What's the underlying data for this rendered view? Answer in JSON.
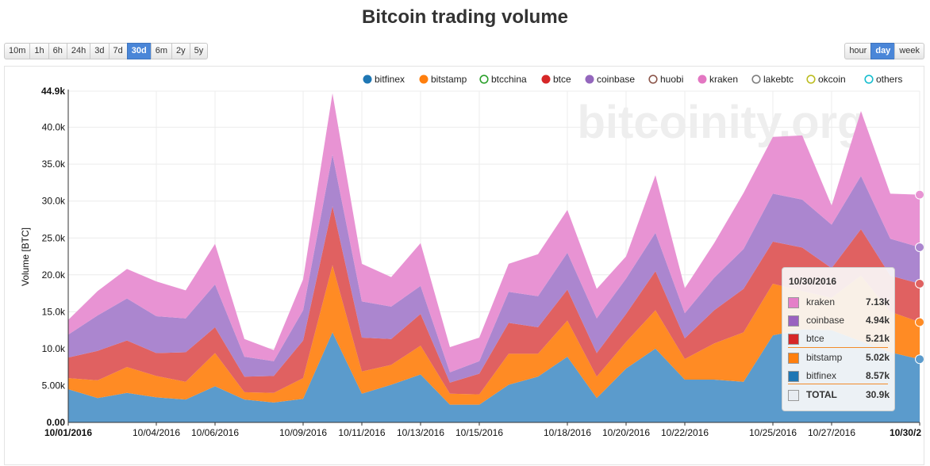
{
  "title": "Bitcoin trading volume",
  "range_buttons": [
    {
      "label": "10m",
      "active": false
    },
    {
      "label": "1h",
      "active": false
    },
    {
      "label": "6h",
      "active": false
    },
    {
      "label": "24h",
      "active": false
    },
    {
      "label": "3d",
      "active": false
    },
    {
      "label": "7d",
      "active": false
    },
    {
      "label": "30d",
      "active": true
    },
    {
      "label": "6m",
      "active": false
    },
    {
      "label": "2y",
      "active": false
    },
    {
      "label": "5y",
      "active": false
    }
  ],
  "period_buttons": [
    {
      "label": "hour",
      "active": false
    },
    {
      "label": "day",
      "active": true
    },
    {
      "label": "week",
      "active": false
    }
  ],
  "watermark": "bitcoinity.org",
  "tooltip": {
    "date": "10/30/2016",
    "rows": [
      {
        "name": "kraken",
        "value": "7.13k",
        "color": "#e47fc8"
      },
      {
        "name": "coinbase",
        "value": "4.94k",
        "color": "#9a62c0"
      },
      {
        "name": "btce",
        "value": "5.21k",
        "color": "#d62728"
      },
      {
        "name": "bitstamp",
        "value": "5.02k",
        "color": "#ff7f0e"
      },
      {
        "name": "bitfinex",
        "value": "8.57k",
        "color": "#1f77b4"
      },
      {
        "name": "TOTAL",
        "value": "30.9k",
        "color": "#e8ecf2"
      }
    ]
  },
  "chart_data": {
    "type": "area",
    "stacked": true,
    "ylabel": "Volume [BTC]",
    "xlabel": "",
    "ylim": [
      0,
      44900
    ],
    "yticks": [
      0,
      5000,
      10000,
      15000,
      20000,
      25000,
      30000,
      35000,
      40000,
      44900
    ],
    "ytick_labels": [
      "0.00",
      "5.00k",
      "10.0k",
      "15.0k",
      "20.0k",
      "25.0k",
      "30.0k",
      "35.0k",
      "40.0k",
      "44.9k"
    ],
    "grid": true,
    "legend_position": "top-right",
    "x": [
      "10/01/2016",
      "10/02/2016",
      "10/03/2016",
      "10/04/2016",
      "10/05/2016",
      "10/06/2016",
      "10/07/2016",
      "10/08/2016",
      "10/09/2016",
      "10/10/2016",
      "10/11/2016",
      "10/12/2016",
      "10/13/2016",
      "10/14/2016",
      "10/15/2016",
      "10/16/2016",
      "10/17/2016",
      "10/18/2016",
      "10/19/2016",
      "10/20/2016",
      "10/21/2016",
      "10/22/2016",
      "10/23/2016",
      "10/24/2016",
      "10/25/2016",
      "10/26/2016",
      "10/27/2016",
      "10/28/2016",
      "10/29/2016",
      "10/30/2016"
    ],
    "x_tick_labels": [
      {
        "index": 0,
        "label": "10/01/2016",
        "bold": true
      },
      {
        "index": 3,
        "label": "10/04/2016",
        "bold": false
      },
      {
        "index": 5,
        "label": "10/06/2016",
        "bold": false
      },
      {
        "index": 8,
        "label": "10/09/2016",
        "bold": false
      },
      {
        "index": 10,
        "label": "10/11/2016",
        "bold": false
      },
      {
        "index": 12,
        "label": "10/13/2016",
        "bold": false
      },
      {
        "index": 14,
        "label": "10/15/2016",
        "bold": false
      },
      {
        "index": 17,
        "label": "10/18/2016",
        "bold": false
      },
      {
        "index": 19,
        "label": "10/20/2016",
        "bold": false
      },
      {
        "index": 21,
        "label": "10/22/2016",
        "bold": false
      },
      {
        "index": 24,
        "label": "10/25/2016",
        "bold": false
      },
      {
        "index": 26,
        "label": "10/27/2016",
        "bold": false
      },
      {
        "index": 29,
        "label": "10/30/2",
        "bold": true
      }
    ],
    "legend": [
      {
        "name": "bitfinex",
        "color": "#1f77b4",
        "filled": true
      },
      {
        "name": "bitstamp",
        "color": "#ff7f0e",
        "filled": true
      },
      {
        "name": "btcchina",
        "color": "#2ca02c",
        "filled": false
      },
      {
        "name": "btce",
        "color": "#d62728",
        "filled": true
      },
      {
        "name": "coinbase",
        "color": "#9467bd",
        "filled": true
      },
      {
        "name": "huobi",
        "color": "#8c564b",
        "filled": false
      },
      {
        "name": "kraken",
        "color": "#e377c2",
        "filled": true
      },
      {
        "name": "lakebtc",
        "color": "#7f7f7f",
        "filled": false
      },
      {
        "name": "okcoin",
        "color": "#bcbd22",
        "filled": false
      },
      {
        "name": "others",
        "color": "#17becf",
        "filled": false
      }
    ],
    "series": [
      {
        "name": "bitfinex",
        "color": "#5b9bcc",
        "values": [
          4500,
          3300,
          4000,
          3400,
          3100,
          4900,
          3100,
          2700,
          3200,
          12200,
          3900,
          5100,
          6500,
          2400,
          2400,
          5100,
          6200,
          8900,
          3300,
          7300,
          10000,
          5800,
          5800,
          5500,
          11800,
          12600,
          12500,
          11000,
          9500,
          8570
        ]
      },
      {
        "name": "bitstamp",
        "color": "#ff8b24",
        "values": [
          1500,
          2400,
          3500,
          2900,
          2400,
          4500,
          1000,
          1300,
          2800,
          9100,
          3000,
          2700,
          3900,
          1500,
          1400,
          4200,
          3100,
          4900,
          2900,
          3600,
          5200,
          2800,
          4900,
          6700,
          7000,
          5200,
          4400,
          8900,
          5500,
          5020
        ]
      },
      {
        "name": "btce",
        "color": "#e06161",
        "values": [
          2800,
          4000,
          3600,
          3100,
          4000,
          3500,
          2100,
          2300,
          5100,
          8000,
          4600,
          3500,
          4300,
          1500,
          2800,
          4200,
          3600,
          4200,
          3200,
          3800,
          5300,
          2800,
          4500,
          5900,
          5700,
          5900,
          4000,
          6300,
          4900,
          5210
        ]
      },
      {
        "name": "coinbase",
        "color": "#ab86cf",
        "values": [
          3100,
          4800,
          5700,
          5000,
          4600,
          5800,
          2700,
          2000,
          4100,
          7000,
          4900,
          4400,
          3800,
          1400,
          1700,
          4200,
          4200,
          5000,
          4700,
          4800,
          5200,
          3400,
          4400,
          5400,
          6500,
          6500,
          5900,
          7200,
          5000,
          4940
        ]
      },
      {
        "name": "kraken",
        "color": "#e893d3",
        "values": [
          2000,
          3300,
          4000,
          4700,
          3800,
          5500,
          2400,
          1500,
          4200,
          8300,
          5100,
          4000,
          5800,
          3400,
          3200,
          3800,
          5700,
          5800,
          4000,
          3000,
          7800,
          3400,
          4700,
          7600,
          7700,
          8700,
          2600,
          8800,
          6100,
          7130
        ]
      }
    ]
  }
}
